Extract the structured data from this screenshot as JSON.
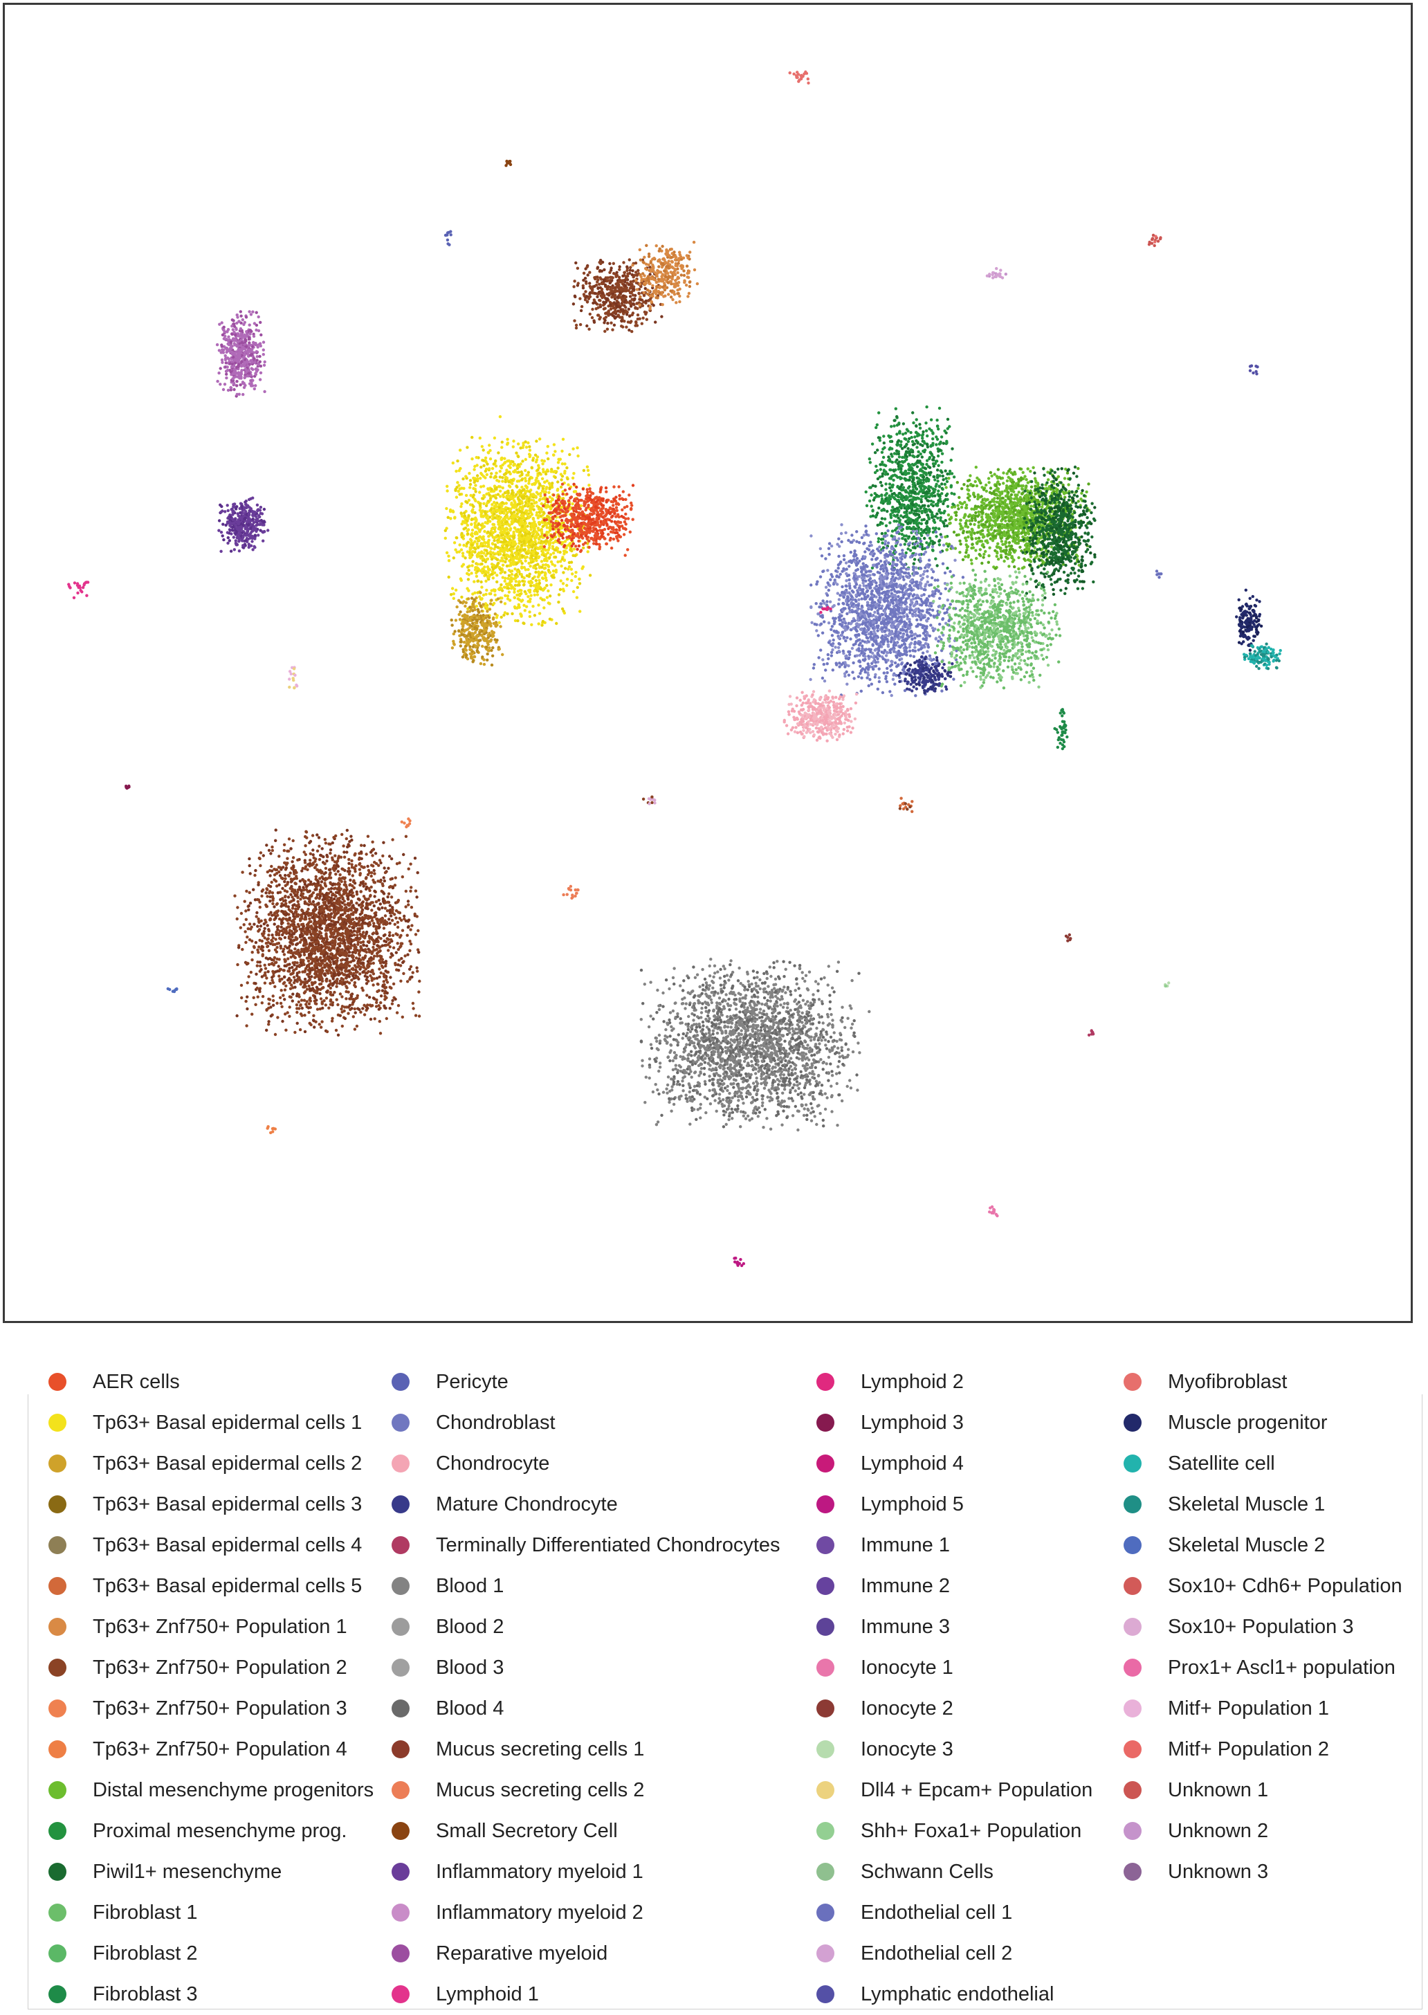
{
  "chart_data": {
    "type": "scatter",
    "title": "",
    "xlabel": "",
    "ylabel": "",
    "grid": false,
    "legend_placement": "bottom",
    "legend": [
      {
        "name": "AER cells",
        "color": "#e8502a"
      },
      {
        "name": "Tp63+ Basal epidermal cells 1",
        "color": "#f3e21c"
      },
      {
        "name": "Tp63+ Basal epidermal cells 2",
        "color": "#cfa22a"
      },
      {
        "name": "Tp63+ Basal epidermal cells 3",
        "color": "#8a6a14"
      },
      {
        "name": "Tp63+ Basal epidermal cells 4",
        "color": "#8e7f55"
      },
      {
        "name": "Tp63+ Basal epidermal cells 5",
        "color": "#d2693a"
      },
      {
        "name": "Tp63+ Znf750+ Population 1",
        "color": "#d98a45"
      },
      {
        "name": "Tp63+ Znf750+ Population 2",
        "color": "#8b4325"
      },
      {
        "name": "Tp63+ Znf750+ Population 3",
        "color": "#ef8150"
      },
      {
        "name": "Tp63+ Znf750+ Population 4",
        "color": "#ee7f45"
      },
      {
        "name": "Distal mesenchyme progenitors",
        "color": "#6cbd2e"
      },
      {
        "name": "Proximal mesenchyme prog.",
        "color": "#23923f"
      },
      {
        "name": "Piwil1+ mesenchyme",
        "color": "#1a6b30"
      },
      {
        "name": "Fibroblast 1",
        "color": "#6cbe6a"
      },
      {
        "name": "Fibroblast 2",
        "color": "#5bb866"
      },
      {
        "name": "Fibroblast 3",
        "color": "#1e8b48"
      },
      {
        "name": "Pericyte",
        "color": "#5a62b4"
      },
      {
        "name": "Chondroblast",
        "color": "#7077c0"
      },
      {
        "name": "Chondrocyte",
        "color": "#f4a5b4"
      },
      {
        "name": "Mature Chondrocyte",
        "color": "#383a8a"
      },
      {
        "name": "Terminally Differentiated Chondrocytes",
        "color": "#b03a62"
      },
      {
        "name": "Blood 1",
        "color": "#838383"
      },
      {
        "name": "Blood 2",
        "color": "#9c9c9c"
      },
      {
        "name": "Blood 3",
        "color": "#a0a0a0"
      },
      {
        "name": "Blood 4",
        "color": "#6a6a6a"
      },
      {
        "name": "Mucus secreting cells 1",
        "color": "#8c3b2b"
      },
      {
        "name": "Mucus secreting cells 2",
        "color": "#ec7d56"
      },
      {
        "name": "Small Secretory Cell",
        "color": "#8a4412"
      },
      {
        "name": "Inflammatory myeloid 1",
        "color": "#6a3d9a"
      },
      {
        "name": "Inflammatory myeloid 2",
        "color": "#c98cc8"
      },
      {
        "name": "Reparative myeloid",
        "color": "#9c4ea0"
      },
      {
        "name": "Lymphoid 1",
        "color": "#e3338c"
      },
      {
        "name": "Lymphoid 2",
        "color": "#e0297f"
      },
      {
        "name": "Lymphoid 3",
        "color": "#861a4f"
      },
      {
        "name": "Lymphoid 4",
        "color": "#c81a79"
      },
      {
        "name": "Lymphoid 5",
        "color": "#bd1882"
      },
      {
        "name": "Immune 1",
        "color": "#704aa3"
      },
      {
        "name": "Immune 2",
        "color": "#66429e"
      },
      {
        "name": "Immune 3",
        "color": "#5d4398"
      },
      {
        "name": "Ionocyte 1",
        "color": "#e976ab"
      },
      {
        "name": "Ionocyte  2",
        "color": "#8c3a34"
      },
      {
        "name": "Ionocyte  3",
        "color": "#b6dcae"
      },
      {
        "name": "Dll4 + Epcam+ Population",
        "color": "#ecd27e"
      },
      {
        "name": "Shh+ Foxa1+ Population",
        "color": "#93cf92"
      },
      {
        "name": "Schwann Cells",
        "color": "#8fc08f"
      },
      {
        "name": "Endothelial cell 1",
        "color": "#6a70bd"
      },
      {
        "name": "Endothelial cell 2",
        "color": "#d3a1d2"
      },
      {
        "name": "Lymphatic endothelial",
        "color": "#5450a6"
      },
      {
        "name": "Myofibroblast",
        "color": "#e76f6c"
      },
      {
        "name": "Muscle progenitor",
        "color": "#22296a"
      },
      {
        "name": "Satellite cell",
        "color": "#22b3ad"
      },
      {
        "name": "Skeletal Muscle 1",
        "color": "#1f8f86"
      },
      {
        "name": "Skeletal Muscle 2",
        "color": "#4f6cbf"
      },
      {
        "name": "Sox10+ Cdh6+ Population",
        "color": "#d25a58"
      },
      {
        "name": "Sox10+ Population 3",
        "color": "#dcaad3"
      },
      {
        "name": "Prox1+ Ascl1+ population",
        "color": "#ea6aa6"
      },
      {
        "name": "Mitf+ Population 1",
        "color": "#e9b1d9"
      },
      {
        "name": "Mitf+ Population 2",
        "color": "#ea6966"
      },
      {
        "name": "Unknown 1",
        "color": "#cc5552"
      },
      {
        "name": "Unknown 2",
        "color": "#c593cb"
      },
      {
        "name": "Unknown 3",
        "color": "#8c6496"
      }
    ],
    "clusters": [
      {
        "label": "Tp63+ Znf750+ Population 2",
        "color": "#8b4325",
        "cx": 0.23,
        "cy": 0.705,
        "rx": 0.05,
        "ry": 0.06,
        "n": 2600,
        "alt_color": "#7a3620"
      },
      {
        "label": "Blood 1",
        "color": "#838383",
        "cx": 0.53,
        "cy": 0.79,
        "rx": 0.06,
        "ry": 0.05,
        "n": 2200,
        "alt_color": "#6a6a6a"
      },
      {
        "label": "Tp63+ Basal epidermal cells 1",
        "color": "#f3e21c",
        "cx": 0.365,
        "cy": 0.4,
        "rx": 0.04,
        "ry": 0.055,
        "n": 2000,
        "alt_color": "#e6d40e"
      },
      {
        "label": "AER cells",
        "color": "#e8502a",
        "cx": 0.415,
        "cy": 0.39,
        "rx": 0.025,
        "ry": 0.02,
        "n": 600,
        "alt_color": "#e23e1e"
      },
      {
        "label": "Tp63+ Basal epidermal cells 2",
        "color": "#cfa22a",
        "cx": 0.335,
        "cy": 0.475,
        "rx": 0.015,
        "ry": 0.022,
        "n": 350,
        "alt_color": "#b88a1e"
      },
      {
        "label": "Tp63+ Znf750+ Population 2",
        "color": "#8b4325",
        "cx": 0.435,
        "cy": 0.22,
        "rx": 0.025,
        "ry": 0.022,
        "n": 500,
        "alt_color": "#7a3620"
      },
      {
        "label": "Tp63+ Znf750+ Population 1",
        "color": "#d98a45",
        "cx": 0.47,
        "cy": 0.205,
        "rx": 0.018,
        "ry": 0.02,
        "n": 300,
        "alt_color": "#c97a35"
      },
      {
        "label": "Reparative myeloid",
        "color": "#b06bb8",
        "cx": 0.168,
        "cy": 0.265,
        "rx": 0.013,
        "ry": 0.025,
        "n": 500,
        "alt_color": "#9c4ea0"
      },
      {
        "label": "Inflammatory myeloid 1",
        "color": "#6a3d9a",
        "cx": 0.17,
        "cy": 0.395,
        "rx": 0.014,
        "ry": 0.016,
        "n": 350,
        "alt_color": "#5a2f8a"
      },
      {
        "label": "Proximal mesenchyme prog.",
        "color": "#23923f",
        "cx": 0.645,
        "cy": 0.37,
        "rx": 0.025,
        "ry": 0.05,
        "n": 900,
        "alt_color": "#1a7a34"
      },
      {
        "label": "Distal mesenchyme progenitors",
        "color": "#6cbd2e",
        "cx": 0.72,
        "cy": 0.39,
        "rx": 0.04,
        "ry": 0.03,
        "n": 1300,
        "alt_color": "#5aa820"
      },
      {
        "label": "Piwil1+ mesenchyme",
        "color": "#1a6b30",
        "cx": 0.75,
        "cy": 0.4,
        "rx": 0.02,
        "ry": 0.04,
        "n": 700,
        "alt_color": "#145a27"
      },
      {
        "label": "Chondroblast",
        "color": "#7077c0",
        "cx": 0.625,
        "cy": 0.46,
        "rx": 0.04,
        "ry": 0.05,
        "n": 1700,
        "alt_color": "#8a8fcc"
      },
      {
        "label": "Fibroblast 1",
        "color": "#6cbe6a",
        "cx": 0.705,
        "cy": 0.475,
        "rx": 0.035,
        "ry": 0.035,
        "n": 1000,
        "alt_color": "#8fd08c"
      },
      {
        "label": "Chondrocyte",
        "color": "#f4a5b4",
        "cx": 0.58,
        "cy": 0.54,
        "rx": 0.02,
        "ry": 0.015,
        "n": 400,
        "alt_color": "#f5b6c2"
      },
      {
        "label": "Mature Chondrocyte",
        "color": "#383a8a",
        "cx": 0.655,
        "cy": 0.51,
        "rx": 0.015,
        "ry": 0.012,
        "n": 180,
        "alt_color": "#2f3178"
      },
      {
        "label": "Muscle progenitor",
        "color": "#22296a",
        "cx": 0.885,
        "cy": 0.47,
        "rx": 0.007,
        "ry": 0.016,
        "n": 150,
        "alt_color": "#1a2058"
      },
      {
        "label": "Satellite cell",
        "color": "#22b3ad",
        "cx": 0.895,
        "cy": 0.495,
        "rx": 0.012,
        "ry": 0.008,
        "n": 120,
        "alt_color": "#1f8f86"
      },
      {
        "label": "Fibroblast 3",
        "color": "#1e8b48",
        "cx": 0.752,
        "cy": 0.55,
        "rx": 0.004,
        "ry": 0.012,
        "n": 40,
        "alt_color": "#1e8b48"
      },
      {
        "label": "Myofibroblast",
        "color": "#e76f6c",
        "cx": 0.565,
        "cy": 0.055,
        "rx": 0.006,
        "ry": 0.004,
        "n": 20,
        "alt_color": "#e76f6c"
      },
      {
        "label": "Small Secretory Cell",
        "color": "#8a4412",
        "cx": 0.358,
        "cy": 0.12,
        "rx": 0.002,
        "ry": 0.002,
        "n": 8,
        "alt_color": "#8a4412"
      },
      {
        "label": "Pericyte",
        "color": "#5a62b4",
        "cx": 0.315,
        "cy": 0.175,
        "rx": 0.002,
        "ry": 0.006,
        "n": 10,
        "alt_color": "#5a62b4"
      },
      {
        "label": "Endothelial cell 2",
        "color": "#d3a1d2",
        "cx": 0.705,
        "cy": 0.205,
        "rx": 0.006,
        "ry": 0.005,
        "n": 20,
        "alt_color": "#c593cb"
      },
      {
        "label": "Unknown 1",
        "color": "#cc5552",
        "cx": 0.818,
        "cy": 0.178,
        "rx": 0.005,
        "ry": 0.004,
        "n": 15,
        "alt_color": "#e76f6c"
      },
      {
        "label": "Lymphatic endothelial",
        "color": "#5450a6",
        "cx": 0.888,
        "cy": 0.277,
        "rx": 0.003,
        "ry": 0.003,
        "n": 8,
        "alt_color": "#5450a6"
      },
      {
        "label": "Lymphoid 1",
        "color": "#e3338c",
        "cx": 0.053,
        "cy": 0.444,
        "rx": 0.007,
        "ry": 0.006,
        "n": 20,
        "alt_color": "#e3338c"
      },
      {
        "label": "Mitf+ Population 1",
        "color": "#e9b1d9",
        "cx": 0.205,
        "cy": 0.515,
        "rx": 0.003,
        "ry": 0.012,
        "n": 15,
        "alt_color": "#ecd27e"
      },
      {
        "label": "Lymphoid 3",
        "color": "#861a4f",
        "cx": 0.088,
        "cy": 0.594,
        "rx": 0.002,
        "ry": 0.002,
        "n": 6,
        "alt_color": "#861a4f"
      },
      {
        "label": "Tp63+ Basal epidermal cells 5",
        "color": "#d2693a",
        "cx": 0.642,
        "cy": 0.608,
        "rx": 0.006,
        "ry": 0.005,
        "n": 15,
        "alt_color": "#8b4325"
      },
      {
        "label": "Sox10+ Population 3",
        "color": "#dcaad3",
        "cx": 0.46,
        "cy": 0.605,
        "rx": 0.006,
        "ry": 0.006,
        "n": 12,
        "alt_color": "#8b4325"
      },
      {
        "label": "Mucus secreting cells 2",
        "color": "#ec7d56",
        "cx": 0.405,
        "cy": 0.675,
        "rx": 0.006,
        "ry": 0.004,
        "n": 15,
        "alt_color": "#ec7d56"
      },
      {
        "label": "Tp63+ Znf750+ Population 3",
        "color": "#ef8150",
        "cx": 0.286,
        "cy": 0.622,
        "rx": 0.003,
        "ry": 0.004,
        "n": 8,
        "alt_color": "#ef8150"
      },
      {
        "label": "Skeletal Muscle 2",
        "color": "#4f6cbf",
        "cx": 0.12,
        "cy": 0.748,
        "rx": 0.004,
        "ry": 0.002,
        "n": 8,
        "alt_color": "#4f6cbf"
      },
      {
        "label": "Tp63+ Znf750+ Population 4",
        "color": "#ee7f45",
        "cx": 0.19,
        "cy": 0.857,
        "rx": 0.003,
        "ry": 0.004,
        "n": 8,
        "alt_color": "#ee7f45"
      },
      {
        "label": "Ionocyte 1",
        "color": "#e976ab",
        "cx": 0.704,
        "cy": 0.917,
        "rx": 0.004,
        "ry": 0.004,
        "n": 12,
        "alt_color": "#e976ab"
      },
      {
        "label": "Lymphoid 5",
        "color": "#bd1882",
        "cx": 0.522,
        "cy": 0.955,
        "rx": 0.003,
        "ry": 0.003,
        "n": 10,
        "alt_color": "#bd1882"
      },
      {
        "label": "Terminally Differentiated Chondrocytes",
        "color": "#b03a62",
        "cx": 0.773,
        "cy": 0.781,
        "rx": 0.002,
        "ry": 0.003,
        "n": 6,
        "alt_color": "#b03a62"
      },
      {
        "label": "Ionocyte  3",
        "color": "#b6dcae",
        "cx": 0.826,
        "cy": 0.745,
        "rx": 0.002,
        "ry": 0.003,
        "n": 5,
        "alt_color": "#93cf92"
      },
      {
        "label": "Ionocyte  2",
        "color": "#8c3a34",
        "cx": 0.757,
        "cy": 0.708,
        "rx": 0.003,
        "ry": 0.004,
        "n": 6,
        "alt_color": "#8c3a34"
      },
      {
        "label": "Endothelial cell 1",
        "color": "#6a70bd",
        "cx": 0.822,
        "cy": 0.432,
        "rx": 0.003,
        "ry": 0.004,
        "n": 6,
        "alt_color": "#6a70bd"
      },
      {
        "label": "Lymphoid 2",
        "color": "#e0297f",
        "cx": 0.584,
        "cy": 0.46,
        "rx": 0.004,
        "ry": 0.002,
        "n": 8,
        "alt_color": "#e0297f"
      }
    ]
  }
}
